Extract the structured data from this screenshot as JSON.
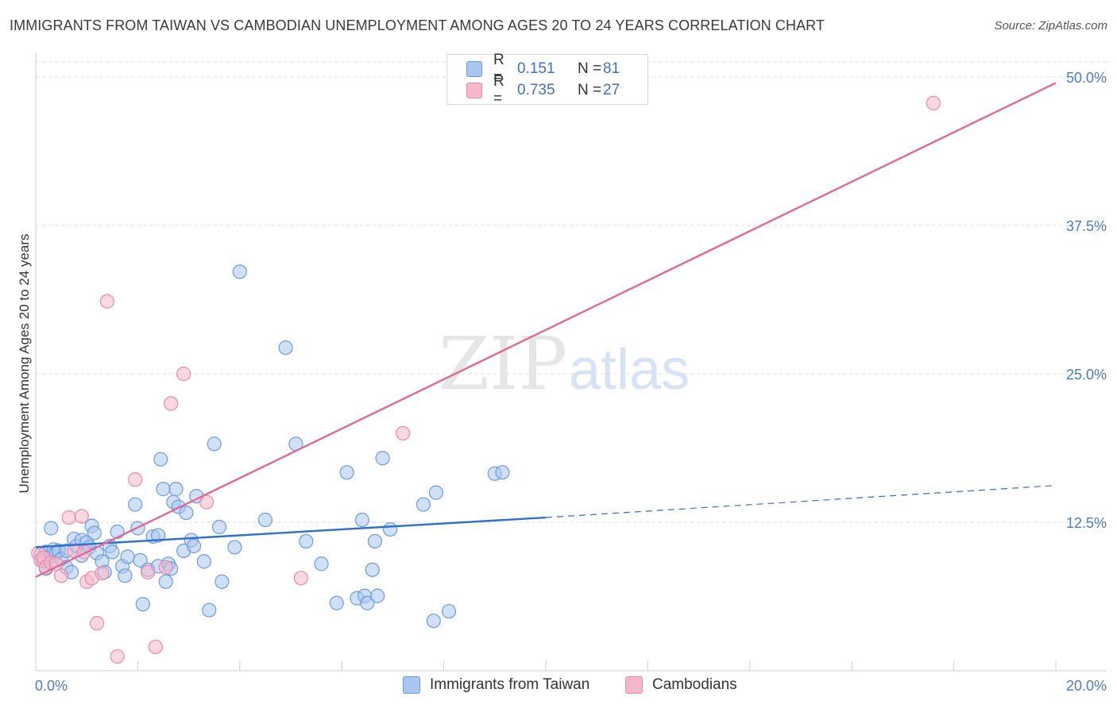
{
  "title": "IMMIGRANTS FROM TAIWAN VS CAMBODIAN UNEMPLOYMENT AMONG AGES 20 TO 24 YEARS CORRELATION CHART",
  "source": "Source: ZipAtlas.com",
  "watermark": {
    "zip": "ZIP",
    "atlas": "atlas"
  },
  "legend": {
    "taiwan": {
      "r_label": "R =",
      "r_value": "0.151",
      "n_label": "N =",
      "n_value": "81"
    },
    "cambodians": {
      "r_label": "R =",
      "r_value": "0.735",
      "n_label": "N =",
      "n_value": "27"
    }
  },
  "bottom_legend": {
    "taiwan": "Immigrants from Taiwan",
    "cambodians": "Cambodians"
  },
  "colors": {
    "taiwan_fill": "#a9c6f0",
    "taiwan_stroke": "#6b9be0",
    "taiwan_line": "#2f6fce",
    "cambodians_fill": "#f5b8cb",
    "cambodians_stroke": "#e98aa8",
    "cambodians_line": "#e06a93",
    "grid": "#dddddd",
    "tick_text": "#4a7cc7"
  },
  "chart_data": {
    "type": "scatter",
    "title": "IMMIGRANTS FROM TAIWAN VS CAMBODIAN UNEMPLOYMENT AMONG AGES 20 TO 24 YEARS CORRELATION CHART",
    "xlabel": "",
    "ylabel": "Unemployment Among Ages 20 to 24 years",
    "xlim": [
      0,
      20
    ],
    "ylim": [
      0,
      50
    ],
    "x_tick_labels": [
      "0.0%",
      "20.0%"
    ],
    "y_ticks": [
      12.5,
      25,
      37.5,
      50
    ],
    "y_tick_labels": [
      "12.5%",
      "25.0%",
      "37.5%",
      "50.0%"
    ],
    "grid": true,
    "legend_position": "top-center",
    "series": [
      {
        "name": "Immigrants from Taiwan",
        "color": "#a9c6f0",
        "trend": {
          "x0": 0.0,
          "y0": 10.4,
          "x1": 10.0,
          "y1": 12.9,
          "dashed_to_x": 20.0,
          "dashed_to_y": 15.6
        },
        "points": [
          [
            0.1,
            9.8
          ],
          [
            0.15,
            9.2
          ],
          [
            0.2,
            10.0
          ],
          [
            0.25,
            9.5
          ],
          [
            0.3,
            9.7
          ],
          [
            0.3,
            12.0
          ],
          [
            0.35,
            10.2
          ],
          [
            0.4,
            9.9
          ],
          [
            0.45,
            10.1
          ],
          [
            0.5,
            9.4
          ],
          [
            0.6,
            8.7
          ],
          [
            0.6,
            10.1
          ],
          [
            0.7,
            8.3
          ],
          [
            0.75,
            11.1
          ],
          [
            0.8,
            10.5
          ],
          [
            0.9,
            9.7
          ],
          [
            0.9,
            11.0
          ],
          [
            1.0,
            10.8
          ],
          [
            1.05,
            10.4
          ],
          [
            1.1,
            12.2
          ],
          [
            1.15,
            11.6
          ],
          [
            1.2,
            9.9
          ],
          [
            1.3,
            9.2
          ],
          [
            1.35,
            8.3
          ],
          [
            1.45,
            10.5
          ],
          [
            1.5,
            10.0
          ],
          [
            1.6,
            11.7
          ],
          [
            1.7,
            8.8
          ],
          [
            1.75,
            8.0
          ],
          [
            1.8,
            9.6
          ],
          [
            1.95,
            14.0
          ],
          [
            2.0,
            12.0
          ],
          [
            2.05,
            9.3
          ],
          [
            2.1,
            5.6
          ],
          [
            2.2,
            8.5
          ],
          [
            2.3,
            11.3
          ],
          [
            2.4,
            8.8
          ],
          [
            2.4,
            11.4
          ],
          [
            2.45,
            17.8
          ],
          [
            2.5,
            15.3
          ],
          [
            2.55,
            7.5
          ],
          [
            2.6,
            9.0
          ],
          [
            2.65,
            8.6
          ],
          [
            2.7,
            14.2
          ],
          [
            2.75,
            15.3
          ],
          [
            2.8,
            13.8
          ],
          [
            2.9,
            10.1
          ],
          [
            2.95,
            13.3
          ],
          [
            3.05,
            11.0
          ],
          [
            3.1,
            10.5
          ],
          [
            3.15,
            14.7
          ],
          [
            3.3,
            9.2
          ],
          [
            3.4,
            5.1
          ],
          [
            3.5,
            19.1
          ],
          [
            3.6,
            12.1
          ],
          [
            3.65,
            7.5
          ],
          [
            3.9,
            10.4
          ],
          [
            4.0,
            33.6
          ],
          [
            4.5,
            12.7
          ],
          [
            4.9,
            27.2
          ],
          [
            5.1,
            19.1
          ],
          [
            5.3,
            10.9
          ],
          [
            5.6,
            9.0
          ],
          [
            5.9,
            5.7
          ],
          [
            6.1,
            16.7
          ],
          [
            6.3,
            6.1
          ],
          [
            6.4,
            12.7
          ],
          [
            6.45,
            6.3
          ],
          [
            6.5,
            5.7
          ],
          [
            6.6,
            8.5
          ],
          [
            6.65,
            10.9
          ],
          [
            6.7,
            6.3
          ],
          [
            6.8,
            17.9
          ],
          [
            6.95,
            11.9
          ],
          [
            7.6,
            14.0
          ],
          [
            7.8,
            4.2
          ],
          [
            7.85,
            15.0
          ],
          [
            8.1,
            5.0
          ],
          [
            9.0,
            16.6
          ],
          [
            9.15,
            16.7
          ],
          [
            0.2,
            8.6
          ]
        ]
      },
      {
        "name": "Cambodians",
        "color": "#f5b8cb",
        "trend": {
          "x0": 0.0,
          "y0": 7.9,
          "x1": 20.0,
          "y1": 49.5
        },
        "points": [
          [
            0.05,
            9.9
          ],
          [
            0.1,
            9.3
          ],
          [
            0.15,
            9.5
          ],
          [
            0.2,
            8.7
          ],
          [
            0.3,
            9.1
          ],
          [
            0.5,
            8.0
          ],
          [
            0.65,
            12.9
          ],
          [
            0.75,
            10.1
          ],
          [
            0.9,
            13.0
          ],
          [
            0.95,
            10.0
          ],
          [
            1.0,
            7.5
          ],
          [
            1.1,
            7.8
          ],
          [
            1.2,
            4.0
          ],
          [
            1.3,
            8.2
          ],
          [
            1.4,
            31.1
          ],
          [
            1.6,
            1.2
          ],
          [
            1.95,
            16.1
          ],
          [
            2.2,
            8.3
          ],
          [
            2.35,
            2.0
          ],
          [
            2.55,
            8.7
          ],
          [
            2.65,
            22.5
          ],
          [
            2.9,
            25.0
          ],
          [
            3.35,
            14.2
          ],
          [
            5.2,
            7.8
          ],
          [
            7.2,
            20.0
          ],
          [
            17.6,
            47.8
          ],
          [
            0.4,
            9.0
          ]
        ]
      }
    ]
  }
}
